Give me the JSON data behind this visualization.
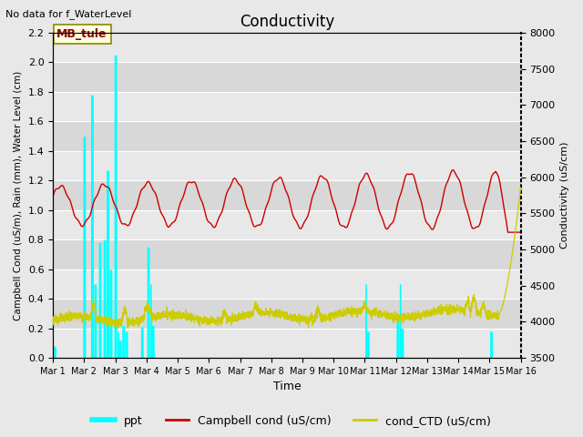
{
  "title": "Conductivity",
  "top_left_text": "No data for f_WaterLevel",
  "annotation_box": "MB_tule",
  "xlabel": "Time",
  "ylabel_left": "Campbell Cond (uS/m), Rain (mm), Water Level (cm)",
  "ylabel_right": "Conductivity (uS/cm)",
  "xlim_days": [
    0,
    15
  ],
  "ylim_left": [
    0.0,
    2.2
  ],
  "ylim_right": [
    3500,
    8000
  ],
  "x_ticks": [
    0,
    1,
    2,
    3,
    4,
    5,
    6,
    7,
    8,
    9,
    10,
    11,
    12,
    13,
    14,
    15
  ],
  "x_tick_labels": [
    "Mar 1",
    "Mar 2",
    "Mar 3",
    "Mar 4",
    "Mar 5",
    "Mar 6",
    "Mar 7",
    "Mar 8",
    "Mar 9",
    "Mar 10",
    "Mar 11",
    "Mar 12",
    "Mar 13",
    "Mar 14",
    "Mar 15",
    "Mar 16"
  ],
  "y_ticks_left": [
    0.0,
    0.2,
    0.4,
    0.6,
    0.8,
    1.0,
    1.2,
    1.4,
    1.6,
    1.8,
    2.0,
    2.2
  ],
  "y_ticks_right": [
    3500,
    4000,
    4500,
    5000,
    5500,
    6000,
    6500,
    7000,
    7500,
    8000
  ],
  "bg_light": "#e8e8e8",
  "bg_dark": "#d8d8d8",
  "grid_color": "#ffffff",
  "cyan_color": "#00ffff",
  "red_color": "#cc0000",
  "yellow_color": "#cccc00",
  "legend_entries": [
    "ppt",
    "Campbell cond (uS/cm)",
    "cond_CTD (uS/cm)"
  ],
  "rain_events": [
    [
      0.05,
      0.08
    ],
    [
      1.0,
      1.5
    ],
    [
      1.25,
      1.78
    ],
    [
      1.35,
      0.5
    ],
    [
      1.5,
      0.78
    ],
    [
      1.65,
      0.8
    ],
    [
      1.75,
      1.27
    ],
    [
      1.85,
      0.6
    ],
    [
      2.0,
      2.05
    ],
    [
      2.1,
      0.18
    ],
    [
      2.15,
      0.12
    ],
    [
      2.25,
      0.22
    ],
    [
      2.35,
      0.18
    ],
    [
      2.85,
      0.21
    ],
    [
      3.05,
      0.75
    ],
    [
      3.15,
      0.5
    ],
    [
      3.2,
      0.22
    ],
    [
      10.05,
      0.5
    ],
    [
      10.1,
      0.18
    ],
    [
      11.05,
      0.25
    ],
    [
      11.15,
      0.5
    ],
    [
      11.2,
      0.2
    ],
    [
      14.05,
      0.18
    ]
  ]
}
